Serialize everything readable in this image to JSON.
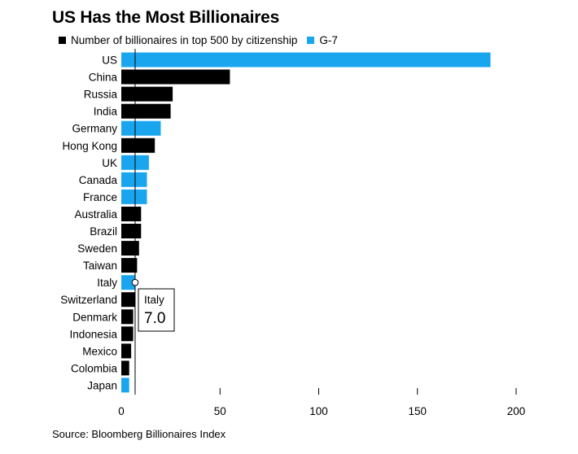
{
  "title": "US Has the Most Billionaires",
  "source": "Source: Bloomberg Billionaires Index",
  "colors": {
    "black_series": "#000000",
    "g7_series": "#1aa6ef"
  },
  "legend": [
    {
      "label": "Number of billionaires in top 500 by citizenship",
      "color": "#000000"
    },
    {
      "label": "G-7",
      "color": "#1aa6ef"
    }
  ],
  "tooltip": {
    "label": "Italy",
    "value": "7.0"
  },
  "chart_data": {
    "type": "bar",
    "orientation": "horizontal",
    "categories": [
      "US",
      "China",
      "Russia",
      "India",
      "Germany",
      "Hong Kong",
      "UK",
      "Canada",
      "France",
      "Australia",
      "Brazil",
      "Sweden",
      "Taiwan",
      "Italy",
      "Switzerland",
      "Denmark",
      "Indonesia",
      "Mexico",
      "Colombia",
      "Japan"
    ],
    "values": [
      187,
      55,
      26,
      25,
      20,
      17,
      14,
      13,
      13,
      10,
      10,
      9,
      8,
      7,
      7,
      6,
      6,
      5,
      4,
      4
    ],
    "g7": [
      true,
      false,
      false,
      false,
      true,
      false,
      true,
      true,
      true,
      false,
      false,
      false,
      false,
      true,
      false,
      false,
      false,
      false,
      false,
      true
    ],
    "legend": [
      "Number of billionaires in top 500 by citizenship",
      "G-7"
    ],
    "xticks": [
      "0",
      "50",
      "100",
      "150",
      "200"
    ],
    "xlim": [
      0,
      200
    ],
    "reference_line_x": 7,
    "highlight_category": "Italy",
    "title": "US Has the Most Billionaires",
    "xlabel": "",
    "ylabel": ""
  }
}
